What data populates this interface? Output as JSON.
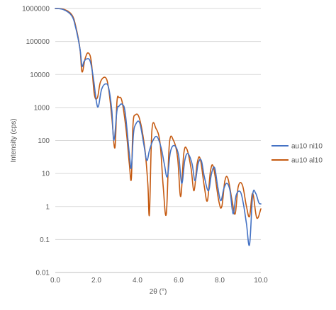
{
  "chart_data": {
    "type": "line",
    "xlabel": "2θ (°)",
    "ylabel": "Intensity (cps)",
    "xlim": [
      0,
      10
    ],
    "ylim": [
      0.01,
      1000000
    ],
    "yscale": "log",
    "grid": true,
    "legend_position": "right",
    "x_ticks": [
      "0.0",
      "2.0",
      "4.0",
      "6.0",
      "8.0",
      "10.0"
    ],
    "y_ticks": [
      "0.01",
      "0.1",
      "1",
      "10",
      "100",
      "1000",
      "10000",
      "100000",
      "1000000"
    ],
    "series": [
      {
        "name": "au10 ni10",
        "color": "#4472c4",
        "x": [
          0.0,
          0.4,
          0.8,
          1.0,
          1.2,
          1.3,
          1.4,
          1.55,
          1.7,
          1.85,
          2.0,
          2.1,
          2.25,
          2.45,
          2.6,
          2.75,
          2.85,
          3.0,
          3.1,
          3.25,
          3.4,
          3.6,
          3.7,
          3.8,
          3.9,
          4.1,
          4.3,
          4.45,
          4.58,
          4.75,
          4.95,
          5.15,
          5.3,
          5.45,
          5.6,
          5.8,
          6.0,
          6.15,
          6.3,
          6.45,
          6.65,
          6.8,
          6.95,
          7.1,
          7.25,
          7.45,
          7.6,
          7.75,
          7.9,
          8.05,
          8.2,
          8.35,
          8.5,
          8.65,
          8.8,
          9.0,
          9.15,
          9.3,
          9.45,
          9.6,
          9.75,
          9.9,
          10.0
        ],
        "y": [
          1000000,
          920000,
          600000,
          250000,
          60000,
          18000,
          25000,
          30000,
          25000,
          8000,
          1500,
          1100,
          3500,
          5200,
          3800,
          800,
          100,
          800,
          1100,
          1250,
          700,
          40,
          15,
          150,
          300,
          350,
          80,
          25,
          50,
          100,
          130,
          60,
          20,
          8,
          45,
          70,
          35,
          5,
          25,
          40,
          20,
          6,
          20,
          25,
          8,
          3,
          10,
          15,
          4,
          1.5,
          3.5,
          5,
          3,
          0.6,
          2.2,
          2.8,
          1.2,
          0.3,
          0.07,
          2.2,
          2.5,
          1.3,
          1.2
        ]
      },
      {
        "name": "au10 al10",
        "color": "#c55a11",
        "x": [
          0.0,
          0.4,
          0.8,
          1.0,
          1.2,
          1.3,
          1.45,
          1.6,
          1.75,
          1.9,
          2.05,
          2.2,
          2.45,
          2.6,
          2.75,
          2.9,
          3.0,
          3.1,
          3.25,
          3.45,
          3.6,
          3.7,
          3.78,
          3.9,
          4.1,
          4.35,
          4.5,
          4.58,
          4.7,
          4.9,
          5.1,
          5.25,
          5.4,
          5.55,
          5.75,
          5.95,
          6.1,
          6.25,
          6.4,
          6.6,
          6.75,
          6.9,
          7.05,
          7.25,
          7.4,
          7.55,
          7.7,
          7.95,
          8.1,
          8.25,
          8.4,
          8.6,
          8.75,
          8.9,
          9.1,
          9.3,
          9.45,
          9.6,
          9.8,
          10.0
        ],
        "y": [
          1000000,
          950000,
          650000,
          280000,
          60000,
          12000,
          30000,
          45000,
          25000,
          2500,
          2000,
          6000,
          8000,
          3500,
          500,
          60,
          1500,
          2000,
          1500,
          200,
          20,
          7,
          300,
          600,
          450,
          60,
          5,
          0.6,
          200,
          230,
          80,
          4,
          0.6,
          80,
          100,
          30,
          2,
          40,
          55,
          15,
          3,
          20,
          28,
          4,
          1.5,
          12,
          15,
          1.5,
          1,
          6,
          7,
          1.5,
          0.6,
          4,
          4.5,
          1,
          0.5,
          2.5,
          0.45,
          0.85
        ]
      }
    ]
  }
}
